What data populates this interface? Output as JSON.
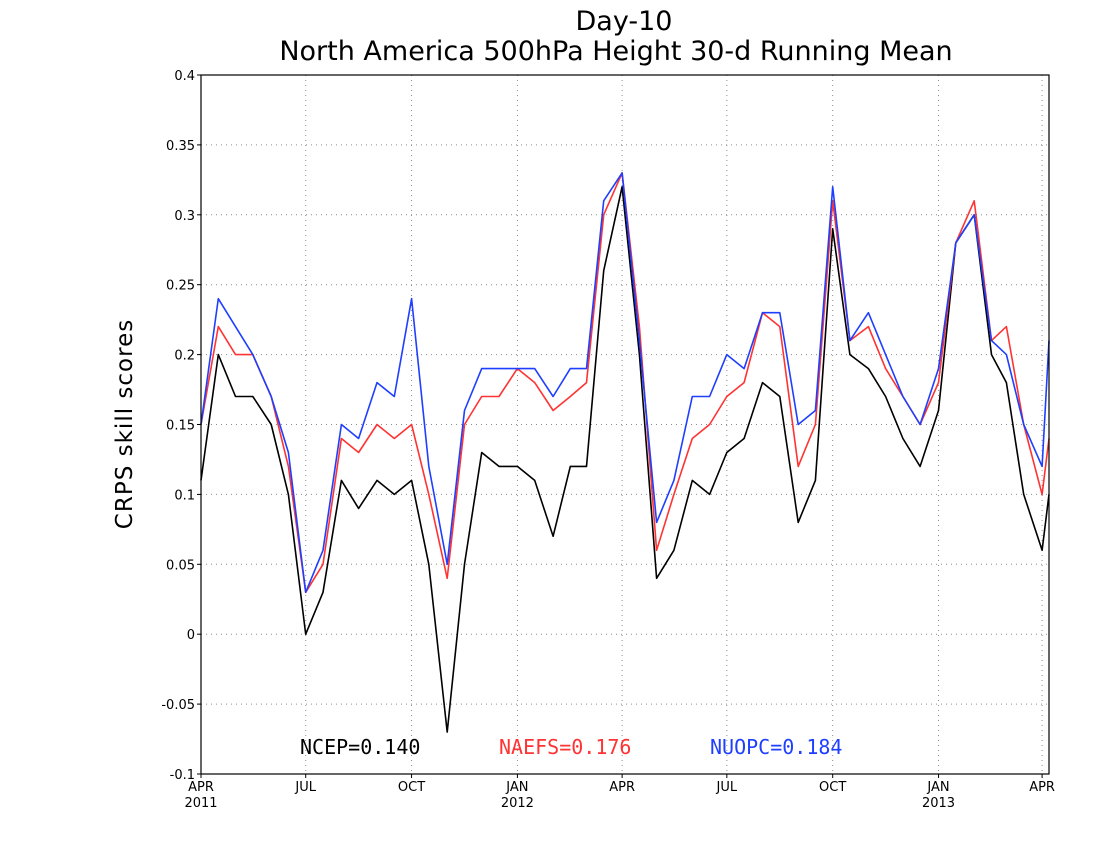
{
  "chart_data": {
    "type": "line",
    "title": "Day-10",
    "subtitle": "North America 500hPa Height 30-d Running Mean",
    "xlabel": "",
    "ylabel": "CRPS skill scores",
    "ylim": [
      -0.1,
      0.4
    ],
    "xlim": [
      "2011-04-01",
      "2013-04-07"
    ],
    "grid": true,
    "legend_placement": "bottom-center",
    "y_ticks": [
      "-0.1",
      "-0.05",
      "0",
      "0.05",
      "0.1",
      "0.15",
      "0.2",
      "0.25",
      "0.3",
      "0.35",
      "0.4"
    ],
    "x_ticks": [
      {
        "date": "2011-04-01",
        "label": "APR",
        "sublabel": "2011"
      },
      {
        "date": "2011-07-01",
        "label": "JUL",
        "sublabel": ""
      },
      {
        "date": "2011-10-01",
        "label": "OCT",
        "sublabel": ""
      },
      {
        "date": "2012-01-01",
        "label": "JAN",
        "sublabel": "2012"
      },
      {
        "date": "2012-04-01",
        "label": "APR",
        "sublabel": ""
      },
      {
        "date": "2012-07-01",
        "label": "JUL",
        "sublabel": ""
      },
      {
        "date": "2012-10-01",
        "label": "OCT",
        "sublabel": ""
      },
      {
        "date": "2013-01-01",
        "label": "JAN",
        "sublabel": "2013"
      },
      {
        "date": "2013-04-01",
        "label": "APR",
        "sublabel": ""
      }
    ],
    "x": [
      "2011-04-01",
      "2011-04-16",
      "2011-05-01",
      "2011-05-16",
      "2011-06-01",
      "2011-06-16",
      "2011-07-01",
      "2011-07-16",
      "2011-08-01",
      "2011-08-16",
      "2011-09-01",
      "2011-09-16",
      "2011-10-01",
      "2011-10-16",
      "2011-11-01",
      "2011-11-16",
      "2011-12-01",
      "2011-12-16",
      "2012-01-01",
      "2012-01-16",
      "2012-02-01",
      "2012-02-16",
      "2012-03-01",
      "2012-03-16",
      "2012-04-01",
      "2012-04-16",
      "2012-05-01",
      "2012-05-16",
      "2012-06-01",
      "2012-06-16",
      "2012-07-01",
      "2012-07-16",
      "2012-08-01",
      "2012-08-16",
      "2012-09-01",
      "2012-09-16",
      "2012-10-01",
      "2012-10-16",
      "2012-11-01",
      "2012-11-16",
      "2012-12-01",
      "2012-12-16",
      "2013-01-01",
      "2013-01-16",
      "2013-02-01",
      "2013-02-16",
      "2013-03-01",
      "2013-03-16",
      "2013-04-01",
      "2013-04-07"
    ],
    "series": [
      {
        "name": "NCEP",
        "label": "NCEP=0.140",
        "color": "#000000",
        "values": [
          0.11,
          0.2,
          0.17,
          0.17,
          0.15,
          0.1,
          0.0,
          0.03,
          0.11,
          0.09,
          0.11,
          0.1,
          0.11,
          0.05,
          -0.07,
          0.05,
          0.13,
          0.12,
          0.12,
          0.11,
          0.07,
          0.12,
          0.12,
          0.26,
          0.32,
          0.2,
          0.04,
          0.06,
          0.11,
          0.1,
          0.13,
          0.14,
          0.18,
          0.17,
          0.08,
          0.11,
          0.29,
          0.2,
          0.19,
          0.17,
          0.14,
          0.12,
          0.16,
          0.28,
          0.3,
          0.2,
          0.18,
          0.1,
          0.06,
          0.1
        ]
      },
      {
        "name": "NAEFS",
        "label": "NAEFS=0.176",
        "color": "#ff3333",
        "values": [
          0.15,
          0.22,
          0.2,
          0.2,
          0.17,
          0.12,
          0.03,
          0.05,
          0.14,
          0.13,
          0.15,
          0.14,
          0.15,
          0.1,
          0.04,
          0.15,
          0.17,
          0.17,
          0.19,
          0.18,
          0.16,
          0.17,
          0.18,
          0.3,
          0.33,
          0.22,
          0.06,
          0.1,
          0.14,
          0.15,
          0.17,
          0.18,
          0.23,
          0.22,
          0.12,
          0.15,
          0.31,
          0.21,
          0.22,
          0.19,
          0.17,
          0.15,
          0.18,
          0.28,
          0.31,
          0.21,
          0.22,
          0.15,
          0.1,
          0.14
        ]
      },
      {
        "name": "NUOPC",
        "label": "NUOPC=0.184",
        "color": "#1f3fff",
        "values": [
          0.15,
          0.24,
          0.22,
          0.2,
          0.17,
          0.13,
          0.03,
          0.06,
          0.15,
          0.14,
          0.18,
          0.17,
          0.24,
          0.12,
          0.05,
          0.16,
          0.19,
          0.19,
          0.19,
          0.19,
          0.17,
          0.19,
          0.19,
          0.31,
          0.33,
          0.21,
          0.08,
          0.11,
          0.17,
          0.17,
          0.2,
          0.19,
          0.23,
          0.23,
          0.15,
          0.16,
          0.32,
          0.21,
          0.23,
          0.2,
          0.17,
          0.15,
          0.19,
          0.28,
          0.3,
          0.21,
          0.2,
          0.15,
          0.12,
          0.21
        ]
      }
    ]
  }
}
